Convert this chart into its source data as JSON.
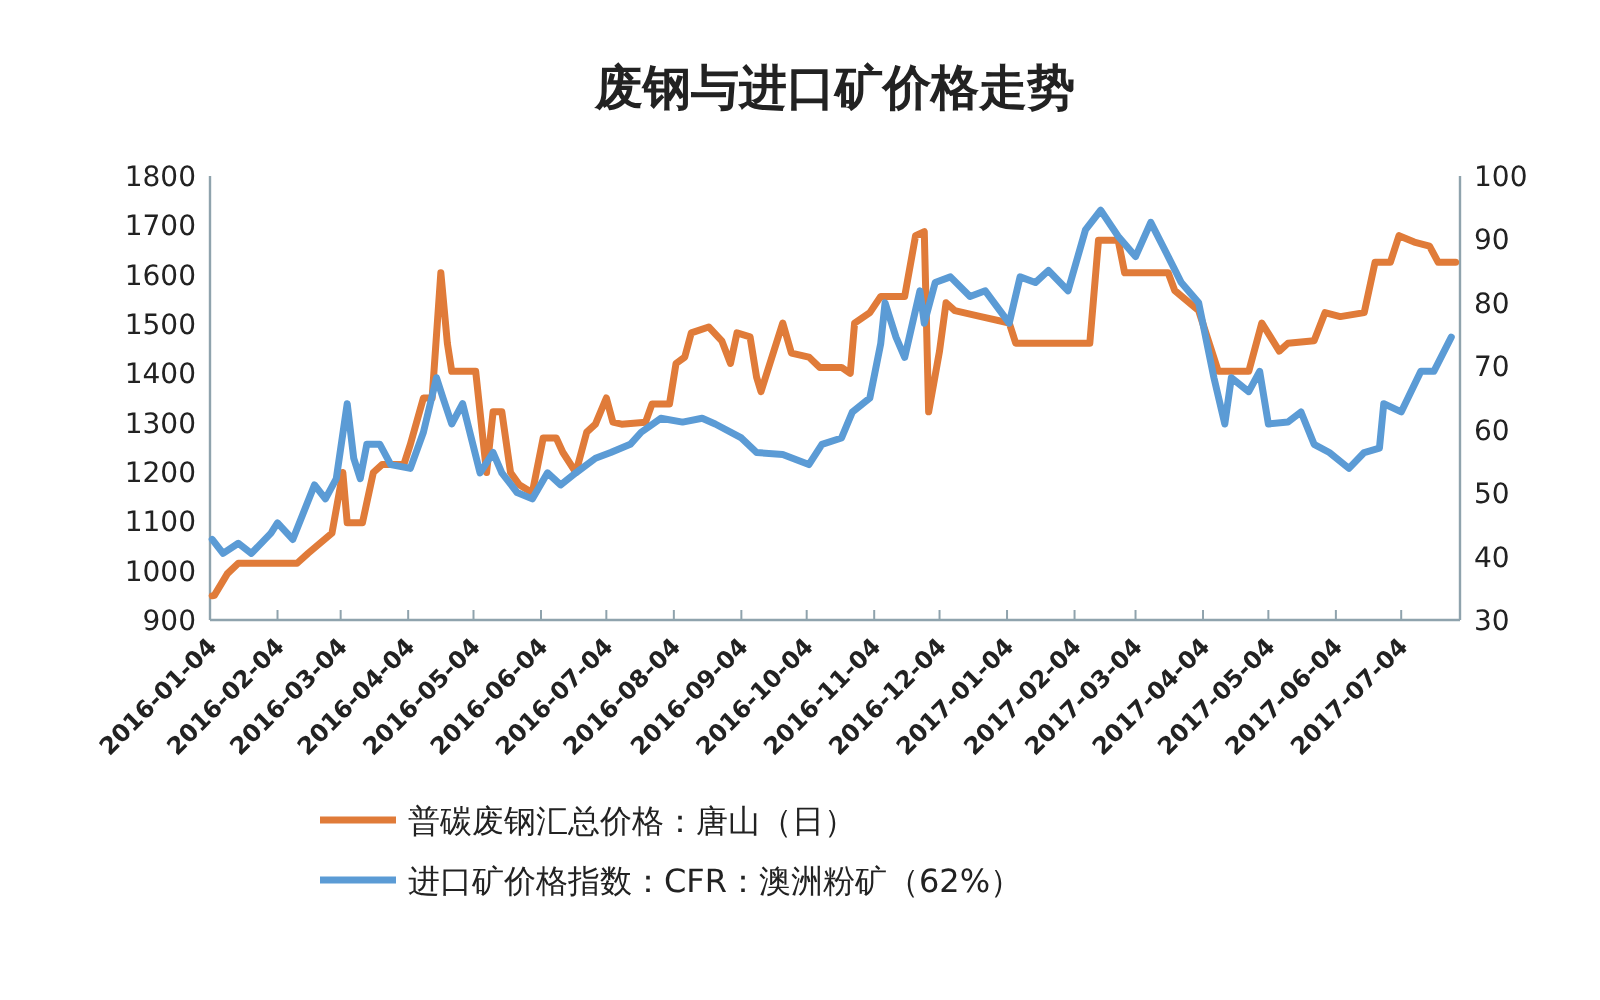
{
  "chart_data": {
    "type": "line",
    "title": "废钢与进口矿价格走势",
    "xlim": [
      "2016-01-04",
      "2017-07-31"
    ],
    "xticks": [
      "2016-01-04",
      "2016-02-04",
      "2016-03-04",
      "2016-04-04",
      "2016-05-04",
      "2016-06-04",
      "2016-07-04",
      "2016-08-04",
      "2016-09-04",
      "2016-10-04",
      "2016-11-04",
      "2016-12-04",
      "2017-01-04",
      "2017-02-04",
      "2017-03-04",
      "2017-04-04",
      "2017-05-04",
      "2017-06-04",
      "2017-07-04"
    ],
    "ylim": [
      900,
      1800
    ],
    "yticks": [
      900,
      1000,
      1100,
      1200,
      1300,
      1400,
      1500,
      1600,
      1700,
      1800
    ],
    "y2lim": [
      30,
      100
    ],
    "y2ticks": [
      30,
      40,
      50,
      60,
      70,
      80,
      90,
      100
    ],
    "legend": "bottom",
    "grid": false,
    "marker": "none",
    "line_style": "solid",
    "series": [
      {
        "name": "普碳废钢汇总价格：唐山（日）",
        "color": "#e07b39",
        "x": [
          "2016-01-05",
          "2016-01-06",
          "2016-01-12",
          "2016-01-17",
          "2016-02-13",
          "2016-02-18",
          "2016-02-29",
          "2016-03-05",
          "2016-03-07",
          "2016-03-14",
          "2016-03-19",
          "2016-03-23",
          "2016-04-02",
          "2016-04-05",
          "2016-04-11",
          "2016-04-15",
          "2016-04-19",
          "2016-04-22",
          "2016-04-24",
          "2016-05-05",
          "2016-05-08",
          "2016-05-10",
          "2016-05-13",
          "2016-05-17",
          "2016-05-21",
          "2016-05-25",
          "2016-05-31",
          "2016-06-05",
          "2016-06-11",
          "2016-06-14",
          "2016-06-20",
          "2016-06-25",
          "2016-06-29",
          "2016-07-04",
          "2016-07-07",
          "2016-07-11",
          "2016-07-22",
          "2016-07-25",
          "2016-08-02",
          "2016-08-05",
          "2016-08-09",
          "2016-08-12",
          "2016-08-20",
          "2016-08-26",
          "2016-08-30",
          "2016-09-02",
          "2016-09-08",
          "2016-09-11",
          "2016-09-13",
          "2016-09-23",
          "2016-09-27",
          "2016-10-05",
          "2016-10-10",
          "2016-10-20",
          "2016-10-24",
          "2016-10-26",
          "2016-11-02",
          "2016-11-07",
          "2016-11-18",
          "2016-11-23",
          "2016-11-27",
          "2016-11-29",
          "2016-12-04",
          "2016-12-07",
          "2016-12-11",
          "2016-12-23",
          "2017-01-05",
          "2017-01-08",
          "2017-02-11",
          "2017-02-15",
          "2017-02-24",
          "2017-02-27",
          "2017-03-19",
          "2017-03-22",
          "2017-04-02",
          "2017-04-11",
          "2017-04-25",
          "2017-05-01",
          "2017-05-09",
          "2017-05-13",
          "2017-05-25",
          "2017-05-30",
          "2017-06-06",
          "2017-06-17",
          "2017-06-22",
          "2017-06-29",
          "2017-07-03",
          "2017-07-10",
          "2017-07-17",
          "2017-07-21",
          "2017-07-29"
        ],
        "values": [
          949,
          950,
          994,
          1015,
          1015,
          1035,
          1076,
          1199,
          1097,
          1097,
          1199,
          1215,
          1215,
          1256,
          1350,
          1350,
          1604,
          1461,
          1404,
          1404,
          1281,
          1199,
          1322,
          1322,
          1199,
          1174,
          1158,
          1269,
          1269,
          1240,
          1199,
          1281,
          1297,
          1350,
          1301,
          1297,
          1301,
          1338,
          1338,
          1420,
          1433,
          1482,
          1494,
          1466,
          1420,
          1482,
          1474,
          1392,
          1363,
          1502,
          1441,
          1433,
          1412,
          1412,
          1400,
          1502,
          1523,
          1556,
          1556,
          1679,
          1687,
          1322,
          1445,
          1543,
          1527,
          1515,
          1502,
          1461,
          1461,
          1670,
          1670,
          1604,
          1604,
          1568,
          1527,
          1404,
          1404,
          1502,
          1445,
          1461,
          1466,
          1523,
          1515,
          1523,
          1625,
          1625,
          1679,
          1666,
          1658,
          1625,
          1625
        ]
      },
      {
        "name": "进口矿价格指数：CFR：澳洲粉矿（62%）",
        "color": "#5b9bd5",
        "axis": "y2",
        "x": [
          "2016-01-05",
          "2016-01-10",
          "2016-01-17",
          "2016-01-23",
          "2016-02-01",
          "2016-02-04",
          "2016-02-11",
          "2016-02-21",
          "2016-02-26",
          "2016-03-02",
          "2016-03-07",
          "2016-03-10",
          "2016-03-13",
          "2016-03-16",
          "2016-03-22",
          "2016-03-27",
          "2016-04-05",
          "2016-04-11",
          "2016-04-17",
          "2016-04-20",
          "2016-04-24",
          "2016-04-29",
          "2016-05-07",
          "2016-05-13",
          "2016-05-17",
          "2016-05-24",
          "2016-05-31",
          "2016-06-07",
          "2016-06-13",
          "2016-06-20",
          "2016-06-29",
          "2016-07-06",
          "2016-07-15",
          "2016-07-20",
          "2016-07-29",
          "2016-08-08",
          "2016-08-17",
          "2016-08-23",
          "2016-09-04",
          "2016-09-11",
          "2016-09-23",
          "2016-10-05",
          "2016-10-11",
          "2016-10-20",
          "2016-10-25",
          "2016-11-02",
          "2016-11-07",
          "2016-11-09",
          "2016-11-14",
          "2016-11-18",
          "2016-11-25",
          "2016-11-27",
          "2016-12-02",
          "2016-12-09",
          "2016-12-18",
          "2016-12-25",
          "2017-01-05",
          "2017-01-10",
          "2017-01-17",
          "2017-01-23",
          "2017-02-01",
          "2017-02-09",
          "2017-02-16",
          "2017-02-24",
          "2017-03-04",
          "2017-03-11",
          "2017-03-19",
          "2017-03-25",
          "2017-04-02",
          "2017-04-09",
          "2017-04-14",
          "2017-04-17",
          "2017-04-25",
          "2017-04-30",
          "2017-05-04",
          "2017-05-13",
          "2017-05-19",
          "2017-05-25",
          "2017-06-01",
          "2017-06-10",
          "2017-06-17",
          "2017-06-24",
          "2017-06-26",
          "2017-07-04",
          "2017-07-13",
          "2017-07-19",
          "2017-07-27"
        ],
        "values": [
          42.7,
          40.5,
          42.1,
          40.5,
          43.7,
          45.3,
          42.7,
          51.3,
          49.1,
          52.3,
          64.1,
          55.5,
          52.3,
          57.7,
          57.7,
          54.5,
          53.9,
          59.6,
          68.2,
          65.0,
          60.9,
          64.1,
          53.2,
          56.4,
          53.2,
          50.1,
          49.1,
          53.2,
          51.3,
          53.2,
          55.5,
          56.4,
          57.7,
          59.6,
          61.8,
          61.2,
          61.8,
          60.9,
          58.7,
          56.4,
          56.1,
          54.5,
          57.7,
          58.7,
          62.8,
          65.0,
          73.6,
          80.0,
          74.6,
          71.4,
          81.9,
          76.8,
          83.2,
          84.1,
          81.0,
          81.9,
          76.8,
          84.1,
          83.2,
          85.1,
          81.9,
          91.5,
          94.6,
          90.5,
          87.3,
          92.7,
          87.3,
          83.2,
          80.0,
          68.2,
          60.9,
          68.2,
          66.0,
          69.2,
          60.9,
          61.2,
          62.8,
          57.7,
          56.4,
          53.9,
          56.4,
          57.1,
          64.1,
          62.8,
          69.2,
          69.2,
          74.6
        ]
      }
    ]
  }
}
